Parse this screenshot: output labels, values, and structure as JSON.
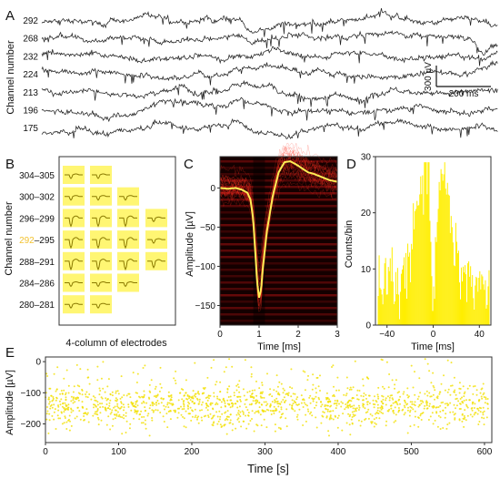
{
  "panels": {
    "a": "A",
    "b": "B",
    "c": "C",
    "d": "D",
    "e": "E"
  },
  "panel_a": {
    "ylabel": "Channel number",
    "channels": [
      "292",
      "268",
      "232",
      "224",
      "213",
      "196",
      "175"
    ],
    "highlight_channel": "292",
    "highlight_color": "#f2c231",
    "scale_amplitude": "300 µV",
    "scale_time": "200 ms"
  },
  "panel_b": {
    "ylabel": "Channel number",
    "rows": [
      "304–305",
      "300–302",
      "296–299",
      "292–295",
      "288–291",
      "284–286",
      "280–281"
    ],
    "highlight_prefix": "292",
    "row_rest": "–295",
    "xlabel": "4-column of electrodes",
    "electrode_color": "#ffee00"
  },
  "chart_data": [
    {
      "type": "heatmap",
      "panel": "C",
      "xlabel": "Time [ms]",
      "ylabel": "Amplitude [µV]",
      "xlim": [
        0,
        3
      ],
      "ylim": [
        -175,
        40
      ],
      "xticks": [
        "0",
        "1",
        "2",
        "3"
      ],
      "yticks": [
        "0",
        "−50",
        "−100",
        "−150"
      ],
      "mean_waveform": {
        "x": [
          0,
          0.2,
          0.4,
          0.55,
          0.7,
          0.78,
          0.85,
          0.9,
          0.95,
          1.0,
          1.05,
          1.1,
          1.2,
          1.35,
          1.5,
          1.65,
          1.8,
          1.95,
          2.1,
          2.25,
          2.4,
          2.6,
          2.8,
          3.0
        ],
        "y": [
          0,
          -1,
          0,
          -2,
          -6,
          -15,
          -40,
          -80,
          -120,
          -140,
          -130,
          -100,
          -55,
          -10,
          20,
          33,
          34,
          30,
          25,
          20,
          18,
          14,
          10,
          8
        ]
      },
      "colors": {
        "background": "#140000",
        "band": "#a01010",
        "mean": "#ffee55"
      }
    },
    {
      "type": "bar",
      "panel": "D",
      "xlabel": "Time [ms]",
      "ylabel": "Counts/bin",
      "xlim": [
        -50,
        50
      ],
      "ylim": [
        0,
        30
      ],
      "xticks": [
        "−40",
        "0",
        "40"
      ],
      "yticks": [
        "0",
        "10",
        "20",
        "30"
      ],
      "envelope": {
        "x": [
          -48,
          -40,
          -30,
          -22,
          -16,
          -12,
          -8,
          -5,
          -3,
          -1,
          0,
          1,
          3,
          5,
          8,
          12,
          16,
          22,
          30,
          40,
          48
        ],
        "y": [
          7,
          7,
          8,
          11,
          17,
          22,
          27,
          26,
          20,
          8,
          5,
          8,
          20,
          28,
          28,
          24,
          17,
          11,
          8,
          7,
          7
        ]
      },
      "color": "#ffee00"
    },
    {
      "type": "scatter",
      "panel": "E",
      "xlabel": "Time [s]",
      "ylabel": "Amplitude [µV]",
      "xlim": [
        0,
        610
      ],
      "ylim": [
        -260,
        15
      ],
      "xticks": [
        "0",
        "100",
        "200",
        "300",
        "400",
        "500",
        "600"
      ],
      "yticks": [
        "0",
        "−100",
        "−200"
      ],
      "point_band": {
        "center": -140,
        "spread": 35,
        "count": 1400
      },
      "color": "#f2e000"
    }
  ]
}
